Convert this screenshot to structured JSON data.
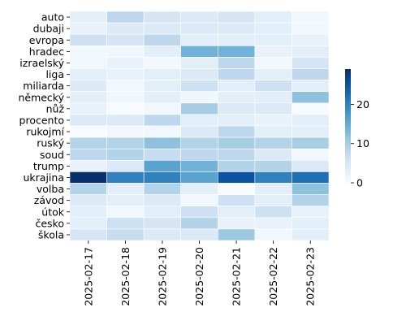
{
  "chart_data": {
    "type": "heatmap",
    "title": "",
    "xlabel": "",
    "ylabel": "",
    "x": [
      "2025-02-17",
      "2025-02-18",
      "2025-02-19",
      "2025-02-20",
      "2025-02-21",
      "2025-02-22",
      "2025-02-23"
    ],
    "y": [
      "auto",
      "dubaji",
      "evropa",
      "hradec",
      "izraelský",
      "liga",
      "miliarda",
      "německý",
      "nůž",
      "procento",
      "rukojmí",
      "ruský",
      "soud",
      "trump",
      "ukrajina",
      "volba",
      "závod",
      "útok",
      "česko",
      "škola"
    ],
    "values": [
      [
        3,
        8,
        5,
        4,
        5,
        3,
        1
      ],
      [
        2,
        4,
        4,
        4,
        4,
        3,
        1
      ],
      [
        6,
        5,
        8,
        3,
        3,
        3,
        2
      ],
      [
        1,
        1,
        3,
        14,
        14,
        2,
        3
      ],
      [
        1,
        2,
        1,
        3,
        8,
        1,
        5
      ],
      [
        3,
        2,
        3,
        4,
        8,
        3,
        8
      ],
      [
        4,
        1,
        3,
        6,
        3,
        6,
        3
      ],
      [
        3,
        1,
        3,
        1,
        3,
        3,
        12
      ],
      [
        2,
        0,
        1,
        10,
        4,
        4,
        0
      ],
      [
        4,
        4,
        8,
        3,
        3,
        2,
        3
      ],
      [
        0,
        1,
        1,
        4,
        8,
        3,
        3
      ],
      [
        9,
        9,
        12,
        9,
        10,
        9,
        10
      ],
      [
        8,
        9,
        7,
        8,
        8,
        4,
        1
      ],
      [
        2,
        4,
        16,
        14,
        9,
        9,
        4
      ],
      [
        29,
        20,
        20,
        16,
        25,
        20,
        22
      ],
      [
        9,
        3,
        9,
        3,
        0,
        3,
        12
      ],
      [
        4,
        3,
        4,
        1,
        6,
        3,
        9
      ],
      [
        3,
        1,
        3,
        6,
        3,
        6,
        2
      ],
      [
        3,
        6,
        5,
        9,
        2,
        2,
        3
      ],
      [
        5,
        7,
        4,
        4,
        11,
        1,
        3
      ]
    ],
    "colorbar": {
      "ticks": [
        0,
        10,
        20
      ],
      "range": [
        0,
        29
      ]
    },
    "colormap": "Blues",
    "grid": false,
    "cell_border_color": "#ffffff"
  }
}
